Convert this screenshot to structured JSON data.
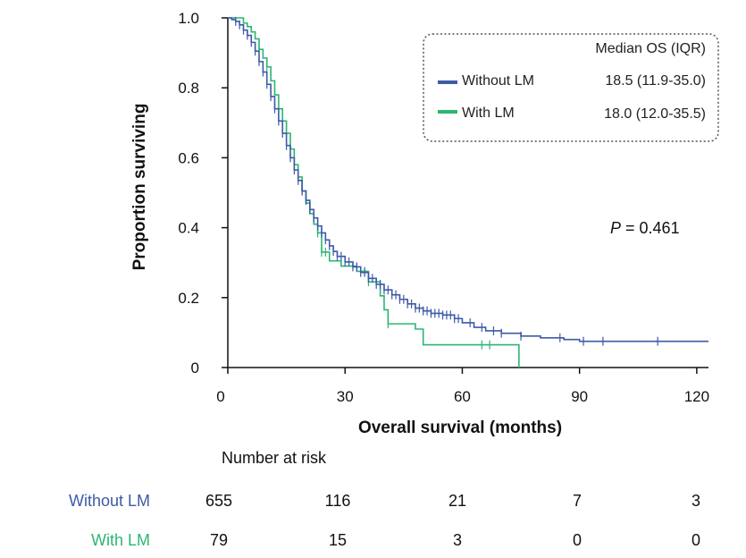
{
  "colors": {
    "without_lm": "#3f5aa6",
    "with_lm": "#2bb673",
    "axis": "#111111"
  },
  "chart_data": {
    "type": "line",
    "xlabel": "Overall survival (months)",
    "ylabel": "Proportion surviving",
    "xlim": [
      0,
      123
    ],
    "ylim": [
      0,
      1.0
    ],
    "x_ticks": [
      "0",
      "30",
      "60",
      "90",
      "120"
    ],
    "y_ticks": [
      "0",
      "0.2",
      "0.4",
      "0.6",
      "0.8",
      "1.0"
    ],
    "legend": {
      "header": "Median OS (IQR)",
      "placement": "top-right",
      "entries": [
        {
          "name": "Without LM",
          "median": "18.5 (11.9-35.0)"
        },
        {
          "name": "With LM",
          "median": "18.0 (12.0-35.5)"
        }
      ]
    },
    "annotation": {
      "p_label": "P",
      "p_value": " = 0.461"
    },
    "series": [
      {
        "name": "Without LM",
        "step_points": [
          [
            0,
            1.0
          ],
          [
            1,
            0.995
          ],
          [
            2,
            0.99
          ],
          [
            3,
            0.98
          ],
          [
            4,
            0.965
          ],
          [
            5,
            0.95
          ],
          [
            6,
            0.93
          ],
          [
            7,
            0.905
          ],
          [
            8,
            0.875
          ],
          [
            9,
            0.845
          ],
          [
            10,
            0.81
          ],
          [
            11,
            0.775
          ],
          [
            12,
            0.74
          ],
          [
            13,
            0.705
          ],
          [
            14,
            0.67
          ],
          [
            15,
            0.635
          ],
          [
            16,
            0.6
          ],
          [
            17,
            0.565
          ],
          [
            18,
            0.535
          ],
          [
            19,
            0.505
          ],
          [
            20,
            0.478
          ],
          [
            21,
            0.452
          ],
          [
            22,
            0.428
          ],
          [
            23,
            0.405
          ],
          [
            24,
            0.385
          ],
          [
            25,
            0.365
          ],
          [
            26,
            0.348
          ],
          [
            27,
            0.332
          ],
          [
            28,
            0.318
          ],
          [
            30,
            0.302
          ],
          [
            32,
            0.288
          ],
          [
            34,
            0.272
          ],
          [
            36,
            0.255
          ],
          [
            38,
            0.238
          ],
          [
            40,
            0.222
          ],
          [
            42,
            0.208
          ],
          [
            44,
            0.195
          ],
          [
            46,
            0.182
          ],
          [
            48,
            0.17
          ],
          [
            50,
            0.162
          ],
          [
            52,
            0.155
          ],
          [
            55,
            0.15
          ],
          [
            58,
            0.14
          ],
          [
            60,
            0.128
          ],
          [
            63,
            0.115
          ],
          [
            66,
            0.105
          ],
          [
            70,
            0.098
          ],
          [
            75,
            0.09
          ],
          [
            80,
            0.085
          ],
          [
            86,
            0.08
          ],
          [
            90,
            0.075
          ],
          [
            123,
            0.075
          ]
        ],
        "censor_x": [
          2,
          3,
          4,
          5,
          6,
          7,
          8,
          9,
          10,
          11,
          12,
          13,
          14,
          15,
          16,
          17,
          18,
          19,
          20,
          21,
          22,
          23,
          24,
          25,
          26,
          27,
          28,
          29,
          30,
          31,
          32,
          33,
          34,
          35,
          36,
          37,
          38,
          39,
          40,
          41,
          42,
          43,
          44,
          45,
          46,
          47,
          48,
          49,
          50,
          51,
          52,
          53,
          54,
          55,
          56,
          57,
          58,
          59,
          62,
          65,
          68,
          70,
          75,
          85,
          91,
          96,
          110
        ]
      },
      {
        "name": "With LM",
        "step_points": [
          [
            0,
            1.0
          ],
          [
            3,
            1.0
          ],
          [
            4,
            0.985
          ],
          [
            5,
            0.975
          ],
          [
            6,
            0.96
          ],
          [
            7,
            0.94
          ],
          [
            8,
            0.91
          ],
          [
            9,
            0.885
          ],
          [
            10,
            0.86
          ],
          [
            11,
            0.82
          ],
          [
            12,
            0.78
          ],
          [
            13,
            0.74
          ],
          [
            14,
            0.705
          ],
          [
            15,
            0.67
          ],
          [
            16,
            0.625
          ],
          [
            17,
            0.58
          ],
          [
            18,
            0.545
          ],
          [
            19,
            0.505
          ],
          [
            20,
            0.47
          ],
          [
            21,
            0.44
          ],
          [
            22,
            0.41
          ],
          [
            23,
            0.385
          ],
          [
            24,
            0.33
          ],
          [
            26,
            0.305
          ],
          [
            29,
            0.29
          ],
          [
            33,
            0.275
          ],
          [
            36,
            0.245
          ],
          [
            39,
            0.205
          ],
          [
            40,
            0.165
          ],
          [
            41,
            0.125
          ],
          [
            48,
            0.11
          ],
          [
            50,
            0.065
          ],
          [
            68,
            0.065
          ],
          [
            74,
            0.065
          ],
          [
            74.5,
            0
          ]
        ],
        "censor_x": [
          8,
          10,
          14,
          18,
          19,
          23,
          24,
          25,
          35,
          36,
          41,
          65,
          67
        ]
      }
    ],
    "risk_table": {
      "title": "Number at risk",
      "times": [
        0,
        30,
        60,
        90,
        120
      ],
      "rows": [
        {
          "label": "Without LM",
          "values": [
            "655",
            "116",
            "21",
            "7",
            "3"
          ]
        },
        {
          "label": "With LM",
          "values": [
            "79",
            "15",
            "3",
            "0",
            "0"
          ]
        }
      ]
    }
  }
}
